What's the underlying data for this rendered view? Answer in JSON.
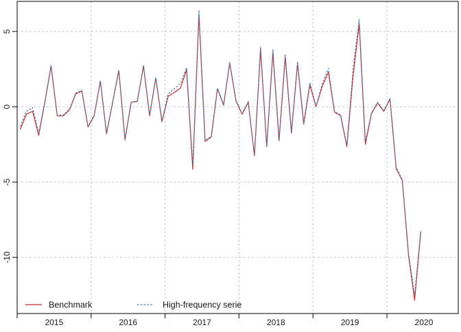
{
  "chart_data": {
    "type": "line",
    "title": "",
    "xlabel": "",
    "ylabel": "",
    "frequency": "monthly",
    "x_start": "2015-01",
    "x_end": "2020-06",
    "x_tick_labels": [
      "2015",
      "2016",
      "2017",
      "2018",
      "2019",
      "2020"
    ],
    "y_tick_labels": [
      "5",
      "0",
      "-5",
      "-10"
    ],
    "y_tick_values": [
      5,
      0,
      -5,
      -10
    ],
    "ylim": [
      -13.7,
      7.0
    ],
    "grid": "dashed gray, horizontal at y ticks and vertical at year starts",
    "legend_position": "bottom-left, no box",
    "series": [
      {
        "name": "Benchmark",
        "color": "#c62f2f",
        "style": "solid",
        "values": [
          -1.5,
          -0.5,
          -0.3,
          -1.9,
          0.3,
          2.7,
          -0.6,
          -0.6,
          -0.2,
          0.85,
          1.05,
          -1.35,
          -0.6,
          1.7,
          -1.8,
          0.3,
          2.4,
          -2.2,
          0.3,
          0.35,
          2.7,
          -0.6,
          1.9,
          -1.0,
          0.7,
          0.95,
          1.25,
          2.45,
          -4.15,
          6.1,
          -2.3,
          -2.0,
          1.2,
          0.1,
          2.9,
          0.4,
          -0.5,
          0.3,
          -3.25,
          3.8,
          -2.65,
          3.6,
          -2.25,
          3.3,
          -1.75,
          2.85,
          -1.15,
          1.45,
          0.0,
          1.35,
          2.3,
          -0.35,
          -0.6,
          -2.65,
          2.0,
          5.5,
          -2.5,
          -0.45,
          0.25,
          -0.3,
          0.5,
          -4.1,
          -4.9,
          -9.8,
          -12.85,
          -8.3
        ]
      },
      {
        "name": "High-frequency serie",
        "color": "#4379a7",
        "style": "dashed",
        "values": [
          -1.3,
          -0.3,
          -0.05,
          -1.75,
          0.35,
          2.75,
          -0.55,
          -0.55,
          -0.15,
          0.9,
          1.1,
          -1.3,
          -0.55,
          1.75,
          -1.75,
          0.3,
          2.45,
          -2.15,
          0.3,
          0.4,
          2.75,
          -0.55,
          1.95,
          -0.95,
          0.85,
          1.2,
          1.55,
          2.6,
          -3.9,
          6.4,
          -2.25,
          -1.95,
          1.25,
          0.15,
          2.95,
          0.45,
          -0.45,
          0.35,
          -3.2,
          4.0,
          -2.6,
          3.8,
          -2.15,
          3.5,
          -1.65,
          3.0,
          -1.05,
          1.6,
          0.05,
          1.5,
          2.55,
          -0.3,
          -0.55,
          -2.55,
          2.5,
          5.8,
          -2.3,
          -0.4,
          0.3,
          -0.25,
          0.55,
          -4.0,
          -4.85,
          -9.7,
          -12.5,
          -8.2
        ]
      }
    ],
    "legend": [
      {
        "label": "Benchmark",
        "color": "#c62f2f",
        "style": "solid"
      },
      {
        "label": "High-frequency serie",
        "color": "#4379a7",
        "style": "dashed"
      }
    ],
    "colors": {
      "benchmark_red": "#c62f2f",
      "high_frequency_blue": "#4379a7",
      "gridline_gray": "#c8c8c8",
      "axis_black": "#000000"
    }
  }
}
